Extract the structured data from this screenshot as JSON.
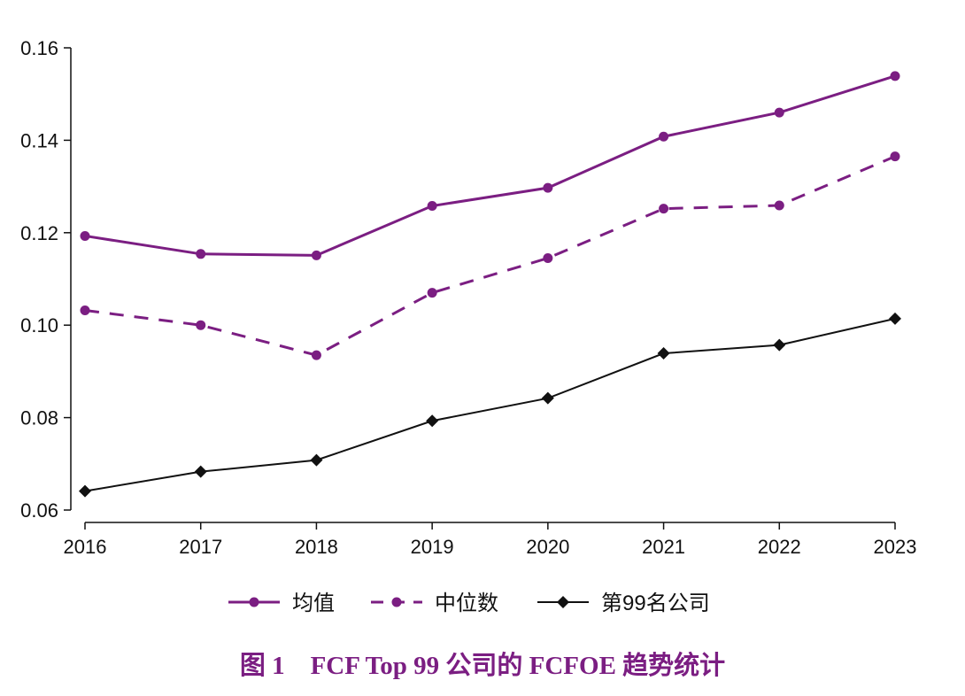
{
  "chart_data": {
    "type": "line",
    "x": [
      2016,
      2017,
      2018,
      2019,
      2020,
      2021,
      2022,
      2023
    ],
    "xlim": [
      2016,
      2023
    ],
    "ylim": [
      0.06,
      0.16
    ],
    "yticks": [
      0.06,
      0.08,
      0.1,
      0.12,
      0.14,
      0.16
    ],
    "ytick_labels": [
      "0.06",
      "0.08",
      "0.10",
      "0.12",
      "0.14",
      "0.16"
    ],
    "xtick_labels": [
      "2016",
      "2017",
      "2018",
      "2019",
      "2020",
      "2021",
      "2022",
      "2023"
    ],
    "grid": false,
    "legend_position": "bottom",
    "series": [
      {
        "name": "均值",
        "values": [
          0.1193,
          0.1154,
          0.1151,
          0.1258,
          0.1297,
          0.1408,
          0.146,
          0.1539
        ],
        "color": "#7b1e82",
        "style": "solid",
        "marker": "circle"
      },
      {
        "name": "中位数",
        "values": [
          0.1032,
          0.1,
          0.0935,
          0.107,
          0.1145,
          0.1252,
          0.1259,
          0.1365
        ],
        "color": "#7b1e82",
        "style": "dashed",
        "marker": "circle"
      },
      {
        "name": "第99名公司",
        "values": [
          0.0641,
          0.0683,
          0.0708,
          0.0793,
          0.0842,
          0.0939,
          0.0957,
          0.1014
        ],
        "color": "#111111",
        "style": "solid",
        "marker": "diamond"
      }
    ]
  },
  "caption": {
    "text": "图 1　FCF Top 99 公司的 FCFOE 趋势统计",
    "color": "#7b1e82"
  }
}
